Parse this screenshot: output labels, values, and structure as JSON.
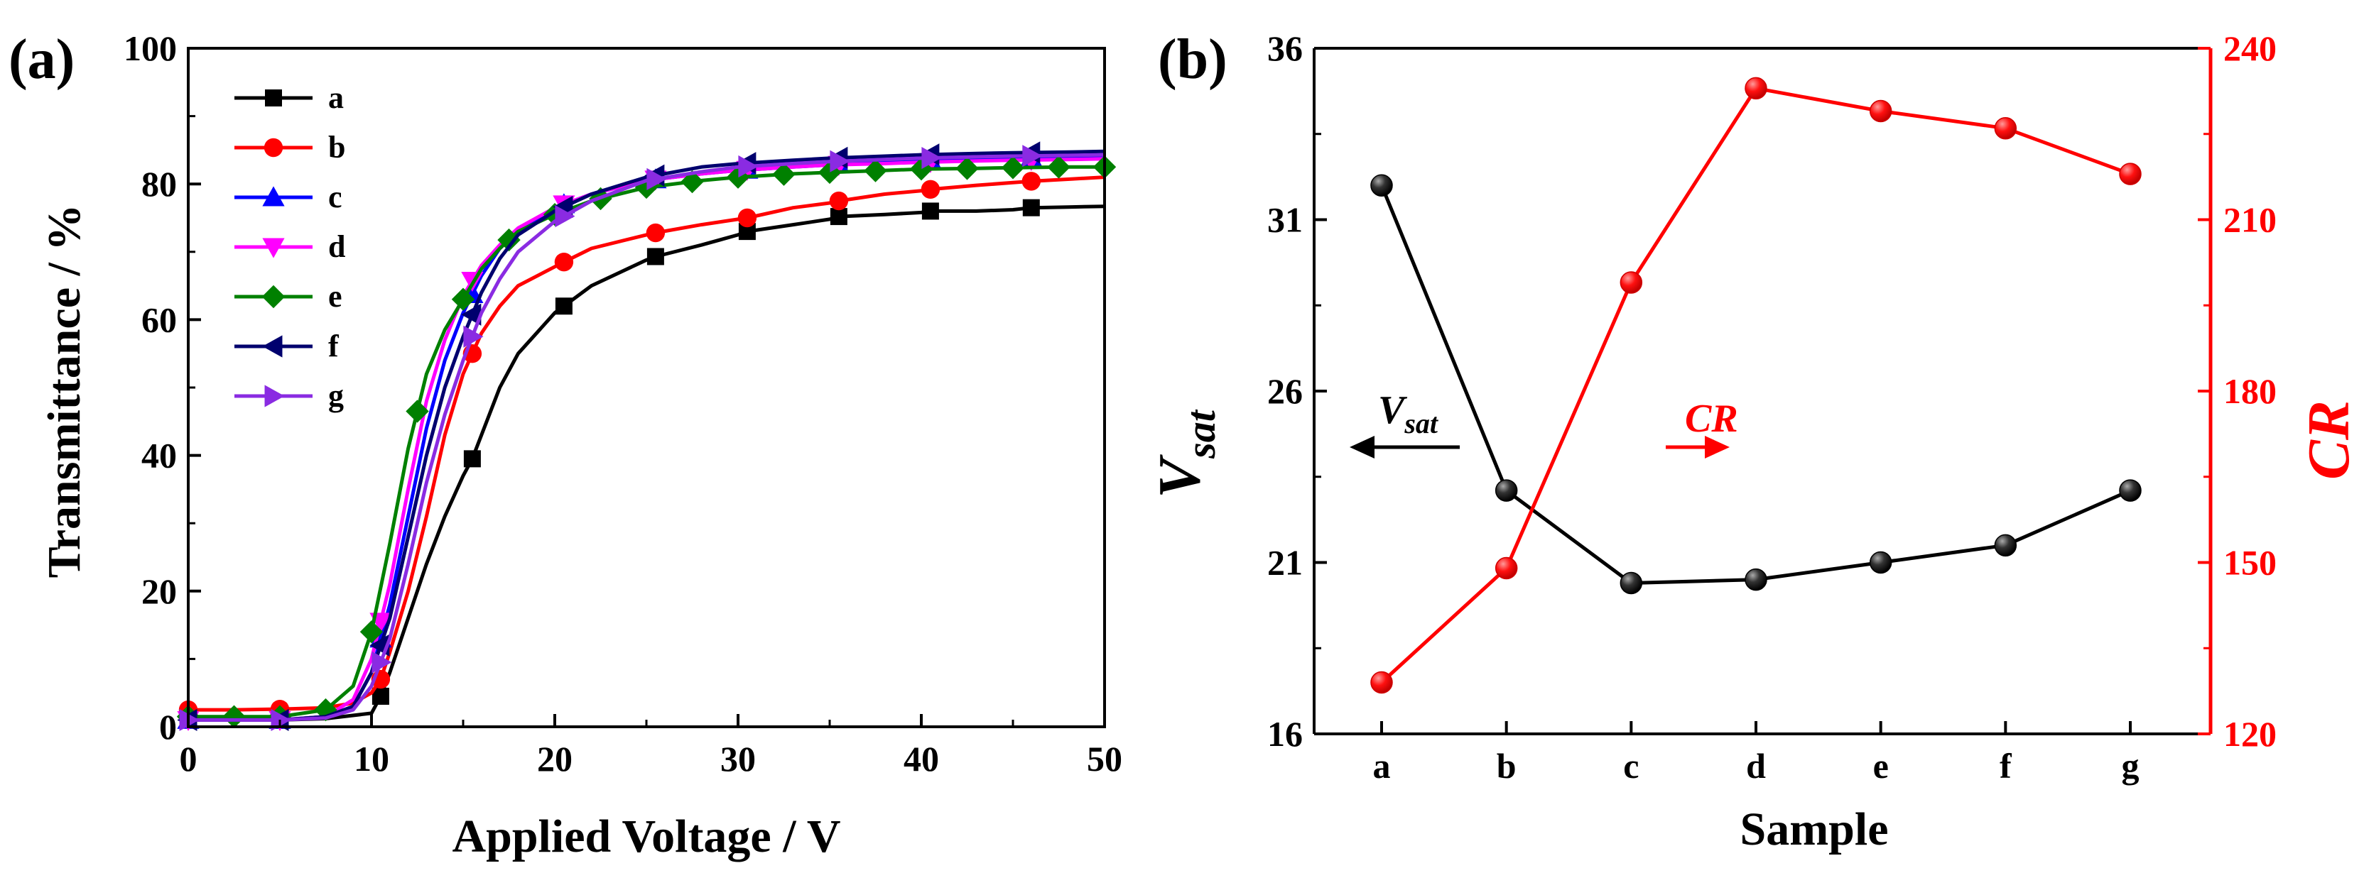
{
  "chart_data": [
    {
      "panel_label": "(a)",
      "type": "line",
      "xlabel": "Applied Voltage / V",
      "ylabel": "Transmittance / %",
      "xlim": [
        0,
        50
      ],
      "ylim": [
        0,
        100
      ],
      "xticks": [
        "0",
        "10",
        "20",
        "30",
        "40",
        "50"
      ],
      "yticks": [
        "0",
        "20",
        "40",
        "60",
        "80",
        "100"
      ],
      "legend_position": "top-left",
      "series": [
        {
          "name": "a",
          "color": "#000000",
          "marker": "square",
          "x": [
            0,
            2.5,
            5,
            7.5,
            10,
            10.5,
            11,
            12,
            13,
            14,
            15,
            15.5,
            16,
            17,
            18,
            20,
            20.5,
            22,
            25,
            25.5,
            28,
            30,
            30.5,
            33,
            35,
            35.5,
            38,
            40,
            40.5,
            43,
            45,
            46,
            48,
            50
          ],
          "y": [
            1.0,
            1.0,
            1.0,
            1.2,
            2.0,
            4.5,
            8,
            16,
            24,
            31,
            37,
            39.5,
            43,
            50,
            55,
            61,
            62,
            65,
            68.8,
            69.3,
            71,
            72.5,
            73,
            74,
            74.8,
            75.2,
            75.5,
            75.8,
            76,
            76,
            76.2,
            76.5,
            76.6,
            76.7
          ],
          "marker_x": [
            0,
            5,
            10.5,
            15.5,
            20.5,
            25.5,
            30.5,
            35.5,
            40.5,
            46
          ]
        },
        {
          "name": "b",
          "color": "#ff0000",
          "marker": "circle",
          "x": [
            0,
            2.5,
            5,
            7.5,
            9,
            10,
            10.5,
            11,
            12,
            13,
            14,
            15,
            15.5,
            16,
            17,
            18,
            20,
            20.5,
            22,
            25,
            25.5,
            28,
            30,
            30.5,
            33,
            35,
            35.5,
            38,
            40,
            40.5,
            43,
            45,
            46,
            48,
            50
          ],
          "y": [
            2.5,
            2.5,
            2.6,
            2.8,
            3.5,
            5,
            7,
            11,
            20,
            31,
            43,
            52,
            55,
            58,
            62,
            65,
            67.8,
            68.5,
            70.5,
            72.5,
            72.8,
            74,
            74.8,
            75,
            76.5,
            77.2,
            77.5,
            78.5,
            79,
            79.2,
            79.8,
            80.2,
            80.4,
            80.7,
            81
          ],
          "marker_x": [
            0,
            5,
            10.5,
            15.5,
            20.5,
            25.5,
            30.5,
            35.5,
            40.5,
            46
          ]
        },
        {
          "name": "c",
          "color": "#0000ff",
          "marker": "triangle-up",
          "x": [
            0,
            2.5,
            5,
            7.5,
            9,
            10,
            11,
            12,
            13,
            14,
            15,
            16,
            17,
            18,
            20,
            22,
            25,
            28,
            30,
            33,
            35,
            38,
            40,
            43,
            45,
            48,
            50
          ],
          "y": [
            1.0,
            1.0,
            1.0,
            1.5,
            3,
            8,
            18,
            31,
            44,
            54,
            61,
            66.5,
            70.5,
            73,
            76.5,
            78.5,
            80.5,
            81.5,
            82,
            82.5,
            82.8,
            83.2,
            83.5,
            83.7,
            83.8,
            84,
            84
          ],
          "marker_x": [
            0,
            5,
            10.5,
            15.5,
            20.5,
            25.5,
            30.5,
            35.5,
            40.5,
            46
          ]
        },
        {
          "name": "d",
          "color": "#ff00ff",
          "marker": "triangle-down",
          "x": [
            0,
            2.5,
            5,
            7.5,
            9,
            10,
            11,
            12,
            13,
            14,
            15,
            16,
            17,
            18,
            20,
            22,
            25,
            28,
            30,
            33,
            35,
            38,
            40,
            43,
            45,
            48,
            50
          ],
          "y": [
            1.0,
            1.0,
            1.0,
            1.5,
            4,
            10,
            21,
            35,
            48,
            57,
            63.5,
            68,
            71,
            73.5,
            76.5,
            78.5,
            80.5,
            81.5,
            82,
            82.5,
            82.8,
            83,
            83.2,
            83.4,
            83.5,
            83.6,
            83.7
          ],
          "marker_x": [
            0,
            5,
            10.5,
            15.5,
            20.5,
            25.5,
            30.5,
            35.5,
            40.5,
            46
          ]
        },
        {
          "name": "e",
          "color": "#008000",
          "marker": "diamond",
          "x": [
            0,
            2.5,
            5,
            7.5,
            9,
            10,
            11,
            12,
            13,
            14,
            15,
            16,
            17,
            18,
            20,
            22,
            25,
            28,
            30,
            33,
            35,
            38,
            40,
            43,
            45,
            48,
            50
          ],
          "y": [
            1.5,
            1.5,
            1.5,
            2.5,
            6,
            14,
            27,
            41,
            52,
            58.5,
            63,
            67.5,
            70.5,
            73,
            75.5,
            77.5,
            79.5,
            80.5,
            81,
            81.5,
            81.7,
            82,
            82.2,
            82.3,
            82.4,
            82.5,
            82.5
          ],
          "marker_x": [
            0,
            2.5,
            5,
            7.5,
            10,
            12.5,
            15,
            17.5,
            20,
            22.5,
            25,
            27.5,
            30,
            32.5,
            35,
            37.5,
            40,
            42.5,
            45,
            47.5,
            50
          ]
        },
        {
          "name": "f",
          "color": "#00006e",
          "marker": "triangle-left",
          "x": [
            0,
            2.5,
            5,
            7.5,
            9,
            10,
            11,
            12,
            13,
            14,
            15,
            16,
            17,
            18,
            20,
            22,
            25,
            28,
            30,
            33,
            35,
            38,
            40,
            43,
            45,
            48,
            50
          ],
          "y": [
            1.0,
            1.0,
            1.0,
            1.5,
            3,
            8,
            16,
            28,
            40,
            50,
            57.5,
            64,
            69,
            72.5,
            76,
            78.5,
            81,
            82.5,
            83,
            83.5,
            83.8,
            84.1,
            84.3,
            84.5,
            84.6,
            84.7,
            84.8
          ],
          "marker_x": [
            0,
            5,
            10.5,
            15.5,
            20.5,
            25.5,
            30.5,
            35.5,
            40.5,
            46
          ]
        },
        {
          "name": "g",
          "color": "#8a2be2",
          "marker": "triangle-right",
          "x": [
            0,
            2.5,
            5,
            7.5,
            9,
            10,
            11,
            12,
            13,
            14,
            15,
            16,
            17,
            18,
            20,
            22,
            25,
            28,
            30,
            33,
            35,
            38,
            40,
            43,
            45,
            48,
            50
          ],
          "y": [
            1.0,
            1.0,
            1.0,
            1.3,
            2.5,
            6,
            13,
            24,
            36,
            46,
            54,
            61,
            66,
            70,
            74.5,
            77.5,
            80.5,
            81.8,
            82.5,
            83,
            83.3,
            83.6,
            83.8,
            84,
            84.1,
            84.2,
            84.3
          ],
          "marker_x": [
            0,
            5,
            10.5,
            15.5,
            20.5,
            25.5,
            30.5,
            35.5,
            40.5,
            46
          ]
        }
      ]
    },
    {
      "panel_label": "(b)",
      "type": "line",
      "categories": [
        "a",
        "b",
        "c",
        "d",
        "e",
        "f",
        "g"
      ],
      "xlabel": "Sample",
      "ylabel_left": "V",
      "ylabel_left_sub": "sat",
      "ylabel_right": "CR",
      "ylim_left": [
        16,
        36
      ],
      "ylim_right": [
        120,
        240
      ],
      "yticks_left": [
        "16",
        "21",
        "26",
        "31",
        "36"
      ],
      "yticks_right": [
        "120",
        "150",
        "180",
        "210",
        "240"
      ],
      "series": [
        {
          "name": "Vsat",
          "axis": "left",
          "color": "#000000",
          "marker": "sphere",
          "values": [
            32.0,
            23.1,
            20.4,
            20.5,
            21.0,
            21.5,
            23.1
          ]
        },
        {
          "name": "CR",
          "axis": "right",
          "color": "#ff0000",
          "marker": "circle",
          "values": [
            129,
            149,
            199,
            233,
            229,
            226,
            218
          ]
        }
      ],
      "annotations": [
        {
          "text": "V",
          "sub": "sat",
          "arrow": "left",
          "color": "#000000"
        },
        {
          "text": "CR",
          "arrow": "right",
          "color": "#ff0000"
        }
      ]
    }
  ]
}
